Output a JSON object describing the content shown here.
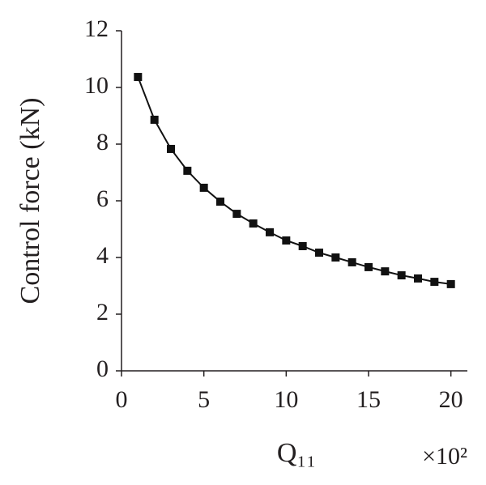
{
  "chart_data": {
    "type": "line",
    "x_label": "Q₁₁",
    "x_multiplier": "×10²",
    "y_label": "Control force (kN)",
    "x": [
      1,
      2,
      3,
      4,
      5,
      6,
      7,
      8,
      9,
      10,
      11,
      12,
      13,
      14,
      15,
      16,
      17,
      18,
      19,
      20
    ],
    "series": [
      {
        "color": "#111111",
        "values": [
          10.37,
          8.86,
          7.83,
          7.06,
          6.46,
          5.97,
          5.54,
          5.2,
          4.89,
          4.6,
          4.4,
          4.17,
          4.0,
          3.83,
          3.66,
          3.51,
          3.37,
          3.26,
          3.14,
          3.06
        ]
      }
    ],
    "xlim": [
      0,
      21
    ],
    "xticks": [
      0,
      5,
      10,
      15,
      20
    ],
    "ylim": [
      0,
      12
    ],
    "yticks": [
      0,
      2,
      4,
      6,
      8,
      10,
      12
    ],
    "grid": false,
    "marker": "square"
  }
}
